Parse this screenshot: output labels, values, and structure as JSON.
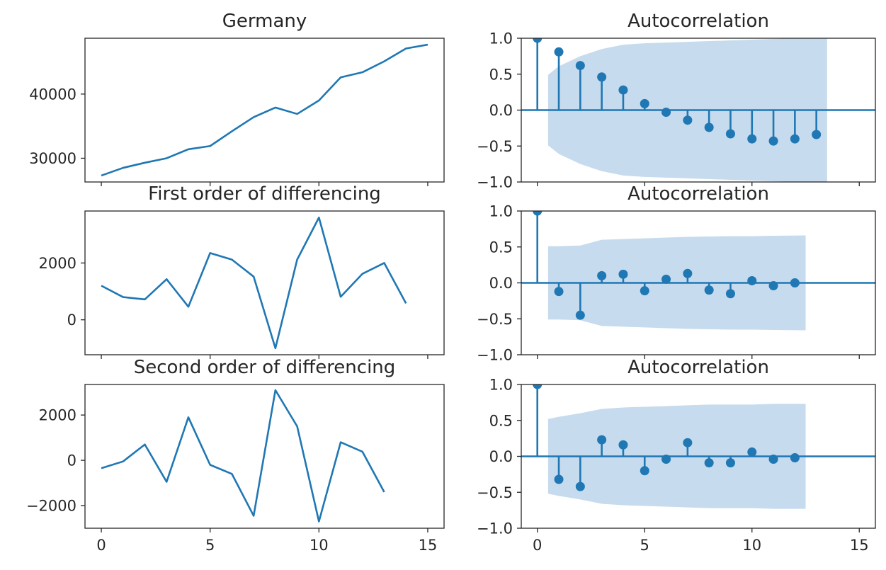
{
  "figure": {
    "background": "#ffffff"
  },
  "colors": {
    "line": "#1f77b4",
    "band": "#c6dbed",
    "axis": "#262626",
    "stem": "#1f77b4"
  },
  "chart_data": [
    {
      "id": "germany",
      "type": "line",
      "title": "Germany",
      "x": [
        0,
        1,
        2,
        3,
        4,
        5,
        6,
        7,
        8,
        9,
        10,
        11,
        12,
        13,
        14,
        15
      ],
      "y": [
        27300,
        28500,
        29300,
        30000,
        31400,
        31900,
        34200,
        36400,
        37900,
        36900,
        39000,
        42600,
        43400,
        45100,
        47100,
        47700
      ],
      "xlim": [
        -0.75,
        15.75
      ],
      "ylim": [
        26300,
        48700
      ],
      "xticks": [
        0,
        5,
        10,
        15
      ],
      "xtick_labels": [
        "",
        "",
        "",
        ""
      ],
      "yticks": [
        30000,
        40000
      ],
      "ytick_labels": [
        "30000",
        "40000"
      ]
    },
    {
      "id": "germany-acf",
      "type": "stem",
      "title": "Autocorrelation",
      "lags": [
        0,
        1,
        2,
        3,
        4,
        5,
        6,
        7,
        8,
        9,
        10,
        11,
        12,
        13
      ],
      "values": [
        1.0,
        0.81,
        0.62,
        0.46,
        0.28,
        0.09,
        -0.03,
        -0.14,
        -0.24,
        -0.33,
        -0.4,
        -0.43,
        -0.4,
        -0.34
      ],
      "confint": [
        0.49,
        0.61,
        0.75,
        0.85,
        0.91,
        0.93,
        0.94,
        0.95,
        0.96,
        0.97,
        0.98,
        0.99,
        1.0,
        1.0
      ],
      "xlim": [
        -0.75,
        15.75
      ],
      "ylim": [
        -1.0,
        1.0
      ],
      "xticks": [
        0,
        5,
        10,
        15
      ],
      "xtick_labels": [
        "",
        "",
        "",
        ""
      ],
      "yticks": [
        -1.0,
        -0.5,
        0.0,
        0.5,
        1.0
      ],
      "ytick_labels": [
        "−1.0",
        "−0.5",
        "0.0",
        "0.5",
        "1.0"
      ]
    },
    {
      "id": "first-diff",
      "type": "line",
      "title": "First order of differencing",
      "x": [
        0,
        1,
        2,
        3,
        4,
        5,
        6,
        7,
        8,
        9,
        10,
        11,
        12,
        13,
        14
      ],
      "y": [
        1200,
        800,
        720,
        1430,
        460,
        2350,
        2120,
        1520,
        -1000,
        2120,
        3600,
        810,
        1620,
        2000,
        580
      ],
      "xlim": [
        -0.75,
        15.75
      ],
      "ylim": [
        -1230,
        3830
      ],
      "xticks": [
        0,
        5,
        10,
        15
      ],
      "xtick_labels": [
        "",
        "",
        "",
        ""
      ],
      "yticks": [
        0,
        2000
      ],
      "ytick_labels": [
        "0",
        "2000"
      ]
    },
    {
      "id": "first-diff-acf",
      "type": "stem",
      "title": "Autocorrelation",
      "lags": [
        0,
        1,
        2,
        3,
        4,
        5,
        6,
        7,
        8,
        9,
        10,
        11,
        12
      ],
      "values": [
        1.0,
        -0.12,
        -0.45,
        0.1,
        0.12,
        -0.11,
        0.05,
        0.13,
        -0.1,
        -0.15,
        0.03,
        -0.04,
        0.0
      ],
      "confint": [
        0.51,
        0.51,
        0.52,
        0.6,
        0.61,
        0.62,
        0.63,
        0.64,
        0.645,
        0.65,
        0.65,
        0.655,
        0.66
      ],
      "xlim": [
        -0.75,
        15.75
      ],
      "ylim": [
        -1.0,
        1.0
      ],
      "xticks": [
        0,
        5,
        10,
        15
      ],
      "xtick_labels": [
        "",
        "",
        "",
        ""
      ],
      "yticks": [
        -1.0,
        -0.5,
        0.0,
        0.5,
        1.0
      ],
      "ytick_labels": [
        "−1.0",
        "−0.5",
        "0.0",
        "0.5",
        "1.0"
      ]
    },
    {
      "id": "second-diff",
      "type": "line",
      "title": "Second order of differencing",
      "x": [
        0,
        1,
        2,
        3,
        4,
        5,
        6,
        7,
        8,
        9,
        10,
        11,
        12,
        13
      ],
      "y": [
        -350,
        -50,
        700,
        -950,
        1900,
        -200,
        -600,
        -2450,
        3100,
        1500,
        -2700,
        800,
        380,
        -1400
      ],
      "xlim": [
        -0.75,
        15.75
      ],
      "ylim": [
        -3000,
        3350
      ],
      "xticks": [
        0,
        5,
        10,
        15
      ],
      "xtick_labels": [
        "0",
        "5",
        "10",
        "15"
      ],
      "yticks": [
        -2000,
        0,
        2000
      ],
      "ytick_labels": [
        "−2000",
        "0",
        "2000"
      ]
    },
    {
      "id": "second-diff-acf",
      "type": "stem",
      "title": "Autocorrelation",
      "lags": [
        0,
        1,
        2,
        3,
        4,
        5,
        6,
        7,
        8,
        9,
        10,
        11,
        12
      ],
      "values": [
        1.0,
        -0.32,
        -0.42,
        0.23,
        0.16,
        -0.2,
        -0.04,
        0.19,
        -0.09,
        -0.09,
        0.06,
        -0.04,
        -0.02
      ],
      "confint": [
        0.52,
        0.55,
        0.6,
        0.66,
        0.68,
        0.69,
        0.7,
        0.71,
        0.72,
        0.72,
        0.72,
        0.73,
        0.73
      ],
      "xlim": [
        -0.75,
        15.75
      ],
      "ylim": [
        -1.0,
        1.0
      ],
      "xticks": [
        0,
        5,
        10,
        15
      ],
      "xtick_labels": [
        "0",
        "5",
        "10",
        "15"
      ],
      "yticks": [
        -1.0,
        -0.5,
        0.0,
        0.5,
        1.0
      ],
      "ytick_labels": [
        "−1.0",
        "−0.5",
        "0.0",
        "0.5",
        "1.0"
      ]
    }
  ]
}
